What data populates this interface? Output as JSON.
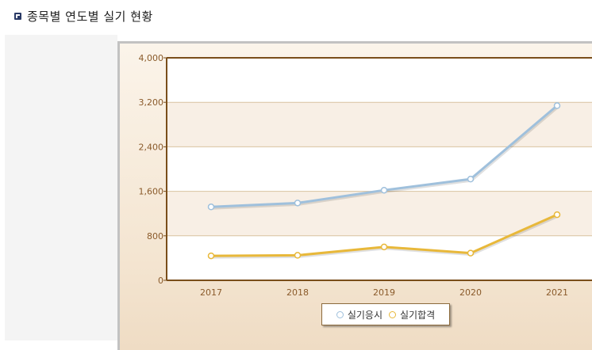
{
  "page": {
    "title": "종목별 연도별 실기 현황"
  },
  "chart_data": {
    "type": "line",
    "categories": [
      "2017",
      "2018",
      "2019",
      "2020",
      "2021"
    ],
    "series": [
      {
        "name": "실기응시",
        "values": [
          1320,
          1390,
          1620,
          1820,
          3140
        ],
        "color": "#9fc0dc"
      },
      {
        "name": "실기합격",
        "values": [
          440,
          450,
          600,
          490,
          1180
        ],
        "color": "#e8b83a"
      }
    ],
    "yticks": [
      "0",
      "800",
      "1,600",
      "2,400",
      "3,200",
      "4,000"
    ],
    "ylim": [
      0,
      4000
    ],
    "grid": true,
    "legend": "bottom",
    "colors": {
      "axis": "#7a4e1a",
      "grid": "#d8c2a0",
      "band": "#f8efe5",
      "tick_label": "#8a5a2a"
    }
  }
}
